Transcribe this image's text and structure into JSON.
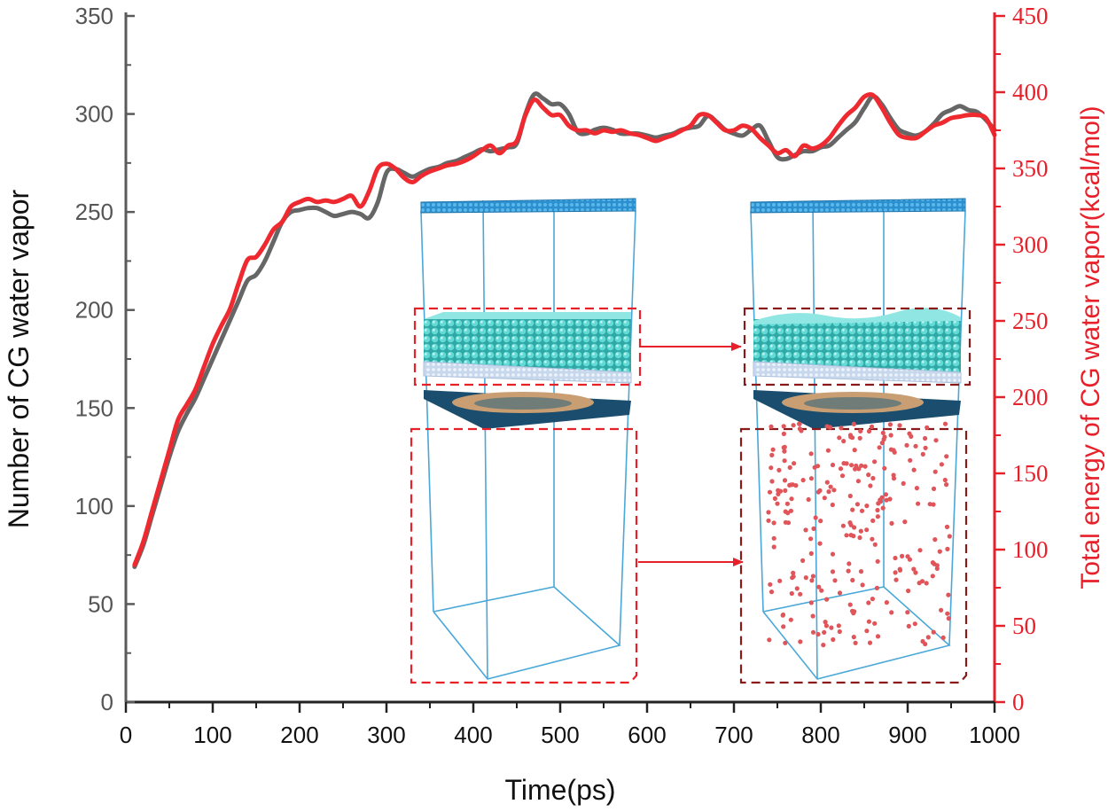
{
  "colors": {
    "left_axis": "#5a5a5a",
    "right_axis": "#e8202a",
    "series_count": "#666666",
    "series_energy": "#ee2a30",
    "box_edge": "#4aa8d8",
    "water": "#3fc6c4",
    "vapor": "#e0555a"
  },
  "chart_data": {
    "type": "line",
    "title": "",
    "xlabel": "Time(ps)",
    "ylabel": "Number of CG water vapor",
    "y2label": "Total energy of CG water vapor(kcal/mol)",
    "xlim": [
      0,
      1000
    ],
    "ylim": [
      0,
      350
    ],
    "y2lim": [
      0,
      450
    ],
    "xticks": [
      "0",
      "100",
      "200",
      "300",
      "400",
      "500",
      "600",
      "700",
      "800",
      "900",
      "1000"
    ],
    "yticks": [
      "0",
      "50",
      "100",
      "150",
      "200",
      "250",
      "300",
      "350"
    ],
    "y2ticks": [
      "0",
      "50",
      "100",
      "150",
      "200",
      "250",
      "300",
      "350",
      "400",
      "450"
    ],
    "grid": false,
    "series": [
      {
        "axis": "left",
        "x": [
          10,
          20,
          30,
          40,
          50,
          60,
          70,
          80,
          90,
          100,
          110,
          120,
          130,
          140,
          150,
          160,
          170,
          180,
          190,
          200,
          210,
          220,
          230,
          240,
          250,
          260,
          270,
          280,
          290,
          300,
          310,
          320,
          330,
          340,
          350,
          360,
          370,
          380,
          390,
          400,
          410,
          420,
          430,
          440,
          450,
          460,
          470,
          480,
          490,
          500,
          510,
          520,
          530,
          540,
          550,
          560,
          570,
          580,
          590,
          600,
          610,
          620,
          630,
          640,
          650,
          660,
          670,
          680,
          690,
          700,
          710,
          720,
          730,
          740,
          750,
          760,
          770,
          780,
          790,
          800,
          810,
          820,
          830,
          840,
          850,
          860,
          870,
          880,
          890,
          900,
          910,
          920,
          930,
          940,
          950,
          960,
          970,
          980,
          990,
          1000
        ],
        "values": [
          69,
          80,
          95,
          110,
          125,
          138,
          147,
          155,
          165,
          175,
          185,
          195,
          205,
          215,
          218,
          225,
          235,
          245,
          250,
          251,
          252,
          252,
          250,
          248,
          249,
          250,
          249,
          247,
          255,
          270,
          272,
          270,
          268,
          270,
          272,
          273,
          275,
          276,
          278,
          280,
          282,
          281,
          282,
          283,
          285,
          300,
          310,
          308,
          305,
          305,
          300,
          291,
          290,
          292,
          293,
          292,
          290,
          290,
          290,
          289,
          288,
          289,
          290,
          292,
          293,
          294,
          299,
          296,
          292,
          290,
          289,
          292,
          294,
          286,
          278,
          277,
          279,
          281,
          281,
          283,
          284,
          288,
          292,
          296,
          303,
          309,
          305,
          298,
          292,
          290,
          289,
          291,
          295,
          300,
          302,
          304,
          302,
          301,
          297,
          292
        ]
      },
      {
        "axis": "right",
        "x": [
          10,
          20,
          30,
          40,
          50,
          60,
          70,
          80,
          90,
          100,
          110,
          120,
          130,
          140,
          150,
          160,
          170,
          180,
          190,
          200,
          210,
          220,
          230,
          240,
          250,
          260,
          270,
          280,
          290,
          300,
          310,
          320,
          330,
          340,
          350,
          360,
          370,
          380,
          390,
          400,
          410,
          420,
          430,
          440,
          450,
          460,
          470,
          480,
          490,
          500,
          510,
          520,
          530,
          540,
          550,
          560,
          570,
          580,
          590,
          600,
          610,
          620,
          630,
          640,
          650,
          660,
          670,
          680,
          690,
          700,
          710,
          720,
          730,
          740,
          750,
          760,
          770,
          780,
          790,
          800,
          810,
          820,
          830,
          840,
          850,
          860,
          870,
          880,
          890,
          900,
          910,
          920,
          930,
          940,
          950,
          960,
          970,
          980,
          990,
          1000
        ],
        "values": [
          90,
          105,
          125,
          145,
          165,
          185,
          195,
          205,
          220,
          235,
          247,
          258,
          275,
          290,
          292,
          300,
          310,
          315,
          325,
          328,
          330,
          328,
          329,
          328,
          330,
          332,
          325,
          335,
          350,
          353,
          350,
          344,
          341,
          345,
          348,
          350,
          352,
          353,
          355,
          358,
          362,
          365,
          360,
          365,
          368,
          385,
          395,
          390,
          385,
          385,
          378,
          375,
          375,
          373,
          375,
          374,
          375,
          373,
          372,
          370,
          368,
          370,
          372,
          375,
          378,
          385,
          385,
          380,
          375,
          375,
          378,
          376,
          370,
          365,
          360,
          362,
          358,
          365,
          363,
          365,
          370,
          378,
          385,
          390,
          397,
          398,
          390,
          380,
          372,
          370,
          370,
          374,
          378,
          380,
          383,
          384,
          385,
          385,
          383,
          372
        ]
      }
    ]
  },
  "insets": [
    {
      "state": "before",
      "vapor_visible": false
    },
    {
      "state": "after",
      "vapor_visible": true
    }
  ]
}
